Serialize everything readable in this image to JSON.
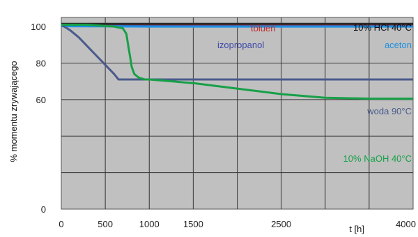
{
  "chart_data": {
    "type": "line",
    "title": "",
    "xlabel": "t [h]",
    "ylabel": "% momentu zrywającego",
    "xlim": [
      0,
      4000
    ],
    "ylim": [
      0,
      105
    ],
    "x_ticks": [
      "0",
      "500",
      "1000",
      "1500",
      "2500",
      "4000"
    ],
    "y_ticks": [
      "0",
      "60",
      "80",
      "100"
    ],
    "grid": true,
    "background_color": "#c0c0c0",
    "series": [
      {
        "name": "toluen",
        "color": "#c0282a",
        "x": [
          0,
          500,
          1000,
          1500,
          2000,
          2500,
          3000,
          3500,
          4000
        ],
        "y": [
          101,
          101,
          101,
          101,
          101,
          101,
          101,
          101,
          101
        ]
      },
      {
        "name": "10% HCl 40°C",
        "color": "#2a2a2a",
        "x": [
          0,
          500,
          1000,
          1500,
          2000,
          2500,
          3000,
          3500,
          4000
        ],
        "y": [
          101.5,
          101.5,
          101.5,
          101.5,
          101.5,
          101.5,
          101.5,
          101.5,
          101.5
        ]
      },
      {
        "name": "izopropanol",
        "color": "#3d4aa8",
        "x": [
          0,
          500,
          1000,
          1500,
          2000,
          2500,
          3000,
          3500,
          4000
        ],
        "y": [
          100.5,
          100.3,
          100.2,
          100.1,
          100.1,
          100.1,
          100.1,
          100.1,
          100.1
        ]
      },
      {
        "name": "aceton",
        "color": "#1e90e0",
        "x": [
          0,
          500,
          1000,
          1500,
          2000,
          2500,
          3000,
          3500,
          4000
        ],
        "y": [
          100.2,
          100.1,
          100,
          100,
          100,
          100,
          100,
          100,
          100
        ]
      },
      {
        "name": "woda 90°C",
        "color": "#4a5a8c",
        "x": [
          0,
          100,
          200,
          300,
          400,
          500,
          600,
          650,
          800,
          1000,
          1500,
          2000,
          2500,
          3000,
          3500,
          4000
        ],
        "y": [
          101,
          98,
          94,
          89,
          84,
          79,
          74,
          71,
          71,
          71,
          71,
          71,
          71,
          71,
          71,
          71
        ]
      },
      {
        "name": "10% NaOH 40°C",
        "color": "#16a047",
        "x": [
          0,
          300,
          600,
          700,
          740,
          760,
          780,
          800,
          830,
          880,
          950,
          1000,
          1500,
          2000,
          2500,
          3000,
          3500,
          4000
        ],
        "y": [
          101,
          101,
          100,
          99,
          96,
          90,
          84,
          78,
          74,
          72,
          71,
          71,
          69,
          66,
          63,
          61,
          60.5,
          60.5
        ]
      }
    ],
    "annotations": [
      {
        "text": "toluen",
        "color": "#c0282a"
      },
      {
        "text": "10% HCl 40°C",
        "color": "#111111"
      },
      {
        "text": "izopropanol",
        "color": "#3d4aa8"
      },
      {
        "text": "aceton",
        "color": "#1e90e0"
      },
      {
        "text": "woda 90°C",
        "color": "#4a5a8c"
      },
      {
        "text": "10% NaOH 40°C",
        "color": "#16a047"
      }
    ]
  }
}
